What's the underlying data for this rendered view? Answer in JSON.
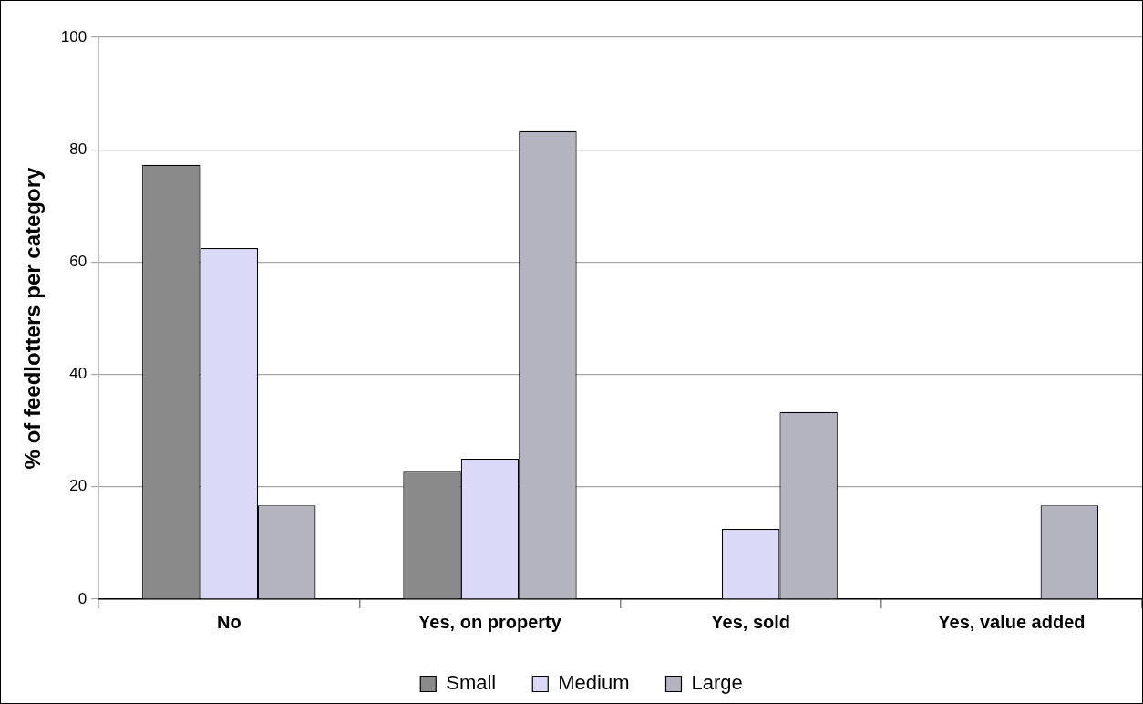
{
  "chart_data": {
    "type": "bar",
    "categories": [
      "No",
      "Yes, on property",
      "Yes, sold",
      "Yes, value added"
    ],
    "series": [
      {
        "name": "Small",
        "color": "#8a8a8a",
        "values": [
          77.3,
          22.7,
          0,
          0
        ]
      },
      {
        "name": "Medium",
        "color": "#dadaf8",
        "values": [
          62.5,
          25,
          12.5,
          0
        ]
      },
      {
        "name": "Large",
        "color": "#b4b4c0",
        "values": [
          16.7,
          83.3,
          33.3,
          16.7
        ]
      }
    ],
    "ylabel": "% of feedlotters per category",
    "ylim": [
      0,
      100
    ],
    "yticks": [
      0,
      20,
      40,
      60,
      80,
      100
    ],
    "grid": "y",
    "legend": "bottom"
  }
}
